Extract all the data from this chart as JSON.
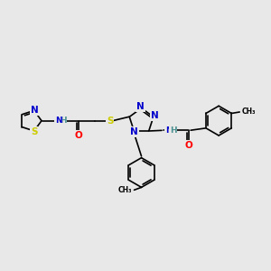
{
  "background_color": "#e8e8e8",
  "atom_colors": {
    "C": "#000000",
    "N": "#0000cc",
    "O": "#ff0000",
    "S": "#cccc00",
    "H": "#4a9090"
  },
  "bond_color": "#000000",
  "bond_width": 1.2,
  "font_size": 7.5,
  "font_size_h": 6.5
}
